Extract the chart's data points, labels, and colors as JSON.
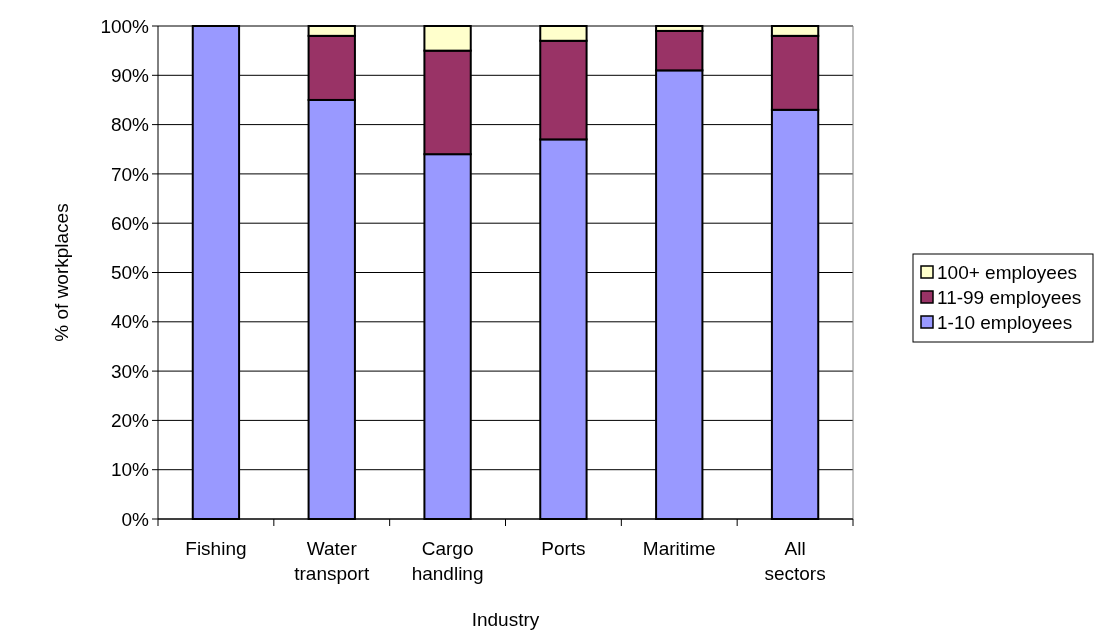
{
  "chart_data": {
    "type": "bar",
    "stacked": true,
    "xlabel": "Industry",
    "ylabel": "% of workplaces",
    "categories": [
      "Fishing",
      "Water transport",
      "Cargo handling",
      "Ports",
      "Maritime",
      "All sectors"
    ],
    "series": [
      {
        "name": "1-10 employees",
        "color": "#9999ff",
        "values": [
          100,
          85,
          74,
          77,
          91,
          83
        ]
      },
      {
        "name": "11-99 employees",
        "color": "#993366",
        "values": [
          0,
          13,
          21,
          20,
          8,
          15
        ]
      },
      {
        "name": "100+ employees",
        "color": "#ffffcc",
        "values": [
          0,
          2,
          5,
          3,
          1,
          2
        ]
      }
    ],
    "ylim": [
      0,
      100
    ],
    "yticks": [
      {
        "value": 0,
        "label": "0%"
      },
      {
        "value": 10,
        "label": "10%"
      },
      {
        "value": 20,
        "label": "20%"
      },
      {
        "value": 30,
        "label": "30%"
      },
      {
        "value": 40,
        "label": "40%"
      },
      {
        "value": 50,
        "label": "50%"
      },
      {
        "value": 60,
        "label": "60%"
      },
      {
        "value": 70,
        "label": "70%"
      },
      {
        "value": 80,
        "label": "80%"
      },
      {
        "value": 90,
        "label": "90%"
      },
      {
        "value": 100,
        "label": "100%"
      }
    ],
    "grid": "y",
    "legend": "right"
  }
}
